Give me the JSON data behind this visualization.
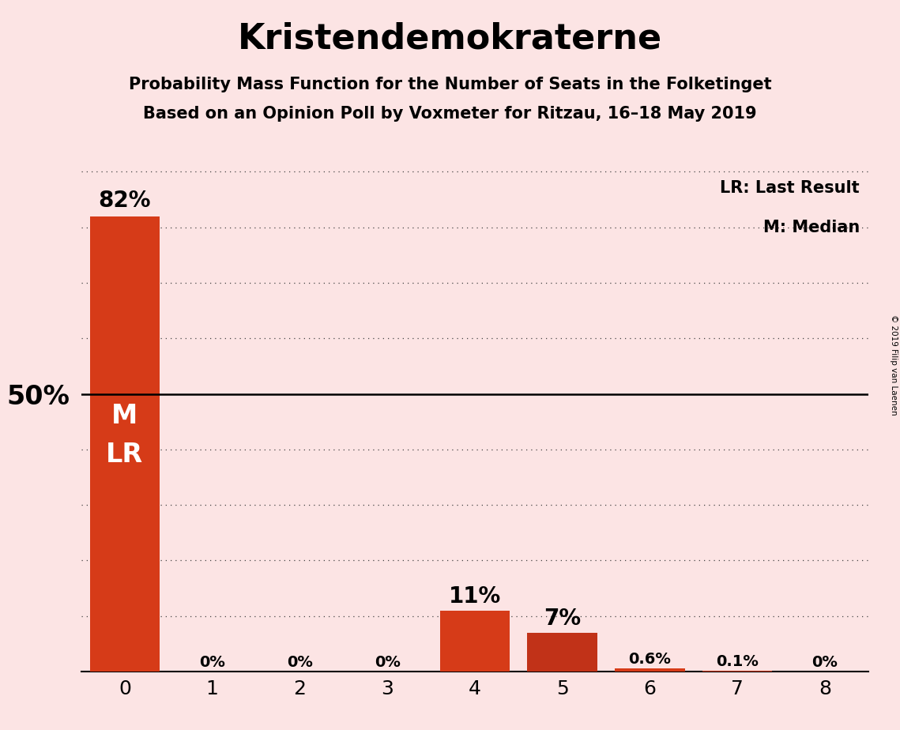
{
  "title": "Kristendemokraterne",
  "subtitle1": "Probability Mass Function for the Number of Seats in the Folketinget",
  "subtitle2": "Based on an Opinion Poll by Voxmeter for Ritzau, 16–18 May 2019",
  "categories": [
    0,
    1,
    2,
    3,
    4,
    5,
    6,
    7,
    8
  ],
  "values": [
    82,
    0,
    0,
    0,
    11,
    7,
    0.6,
    0.1,
    0
  ],
  "bar_labels": [
    "82%",
    "0%",
    "0%",
    "0%",
    "11%",
    "7%",
    "0.6%",
    "0.1%",
    "0%"
  ],
  "bar_color_main": "#d63b18",
  "bar_color_alt": "#c13218",
  "legend_lr": "LR: Last Result",
  "legend_m": "M: Median",
  "background_color": "#fce4e4",
  "solid_line_y": 50,
  "xlim": [
    -0.5,
    8.5
  ],
  "ylim": [
    0,
    92
  ],
  "copyright": "© 2019 Filip van Laenen",
  "title_fontsize": 32,
  "subtitle_fontsize": 15,
  "bar_label_fontsize_large": 20,
  "bar_label_fontsize_small": 14,
  "ytick_label_fontsize": 24,
  "xtick_label_fontsize": 18,
  "legend_fontsize": 15,
  "ml_fontsize": 24
}
